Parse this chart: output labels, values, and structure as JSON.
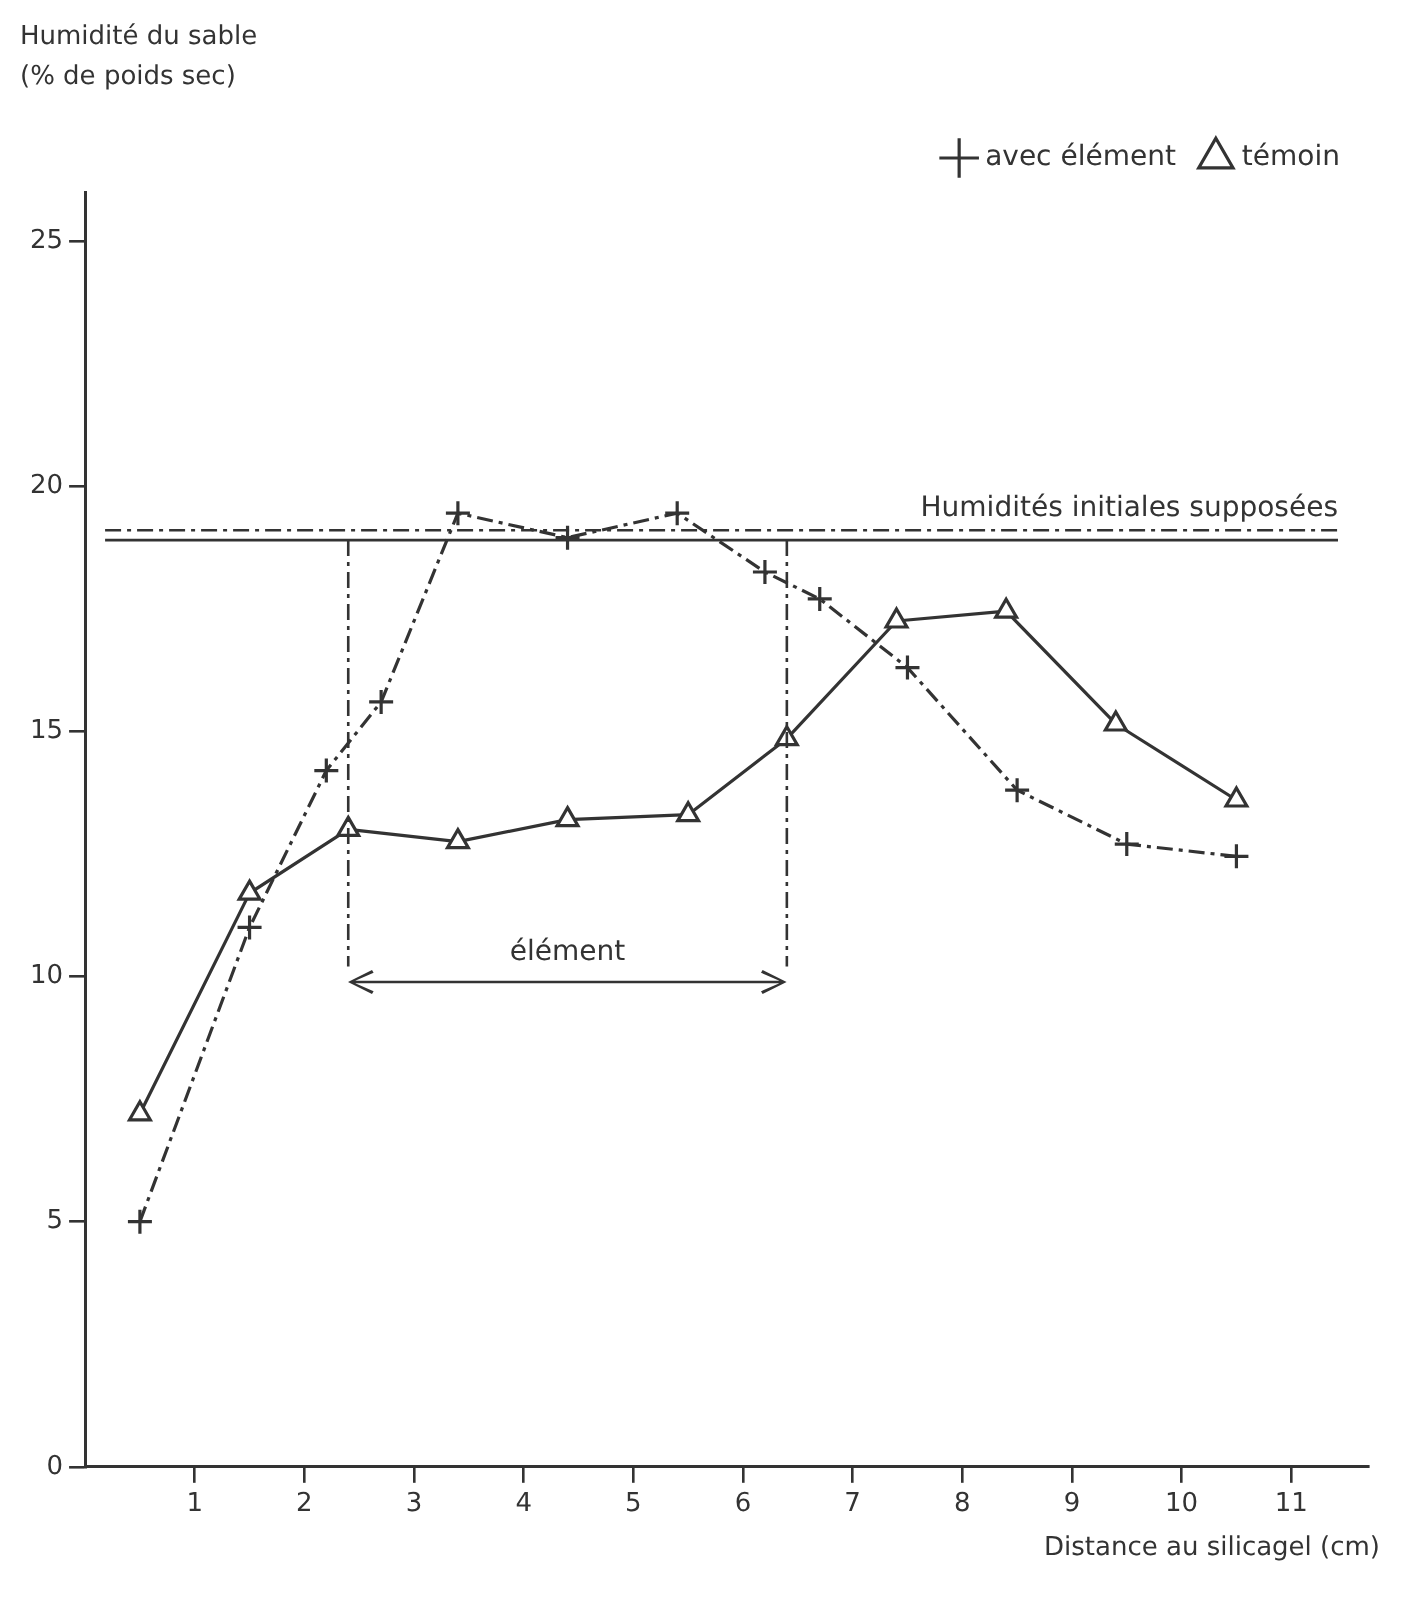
{
  "chart_data": {
    "type": "line",
    "ylabel": "Humidité du sable\n(% de poids sec)",
    "xlabel": "Distance au silicagel (cm)",
    "series": [
      {
        "name": "avec élément",
        "color": "#333333",
        "marker": "cross",
        "line_style": "dashed",
        "x": [
          0.5,
          1.5,
          2.2,
          2.7,
          3.4,
          4.4,
          5.4,
          6.2,
          6.7,
          7.5,
          8.5,
          9.5,
          10.5
        ],
        "values": [
          5.0,
          11.0,
          14.2,
          15.6,
          19.45,
          18.95,
          19.45,
          18.25,
          17.7,
          16.3,
          13.8,
          12.7,
          12.45
        ]
      },
      {
        "name": "témoin",
        "color": "#333333",
        "marker": "triangle",
        "line_style": "solid",
        "x": [
          0.5,
          1.5,
          2.4,
          3.4,
          4.4,
          5.5,
          6.4,
          7.4,
          8.4,
          9.4,
          10.5
        ],
        "values": [
          7.2,
          11.7,
          13.0,
          12.75,
          13.2,
          13.3,
          14.85,
          17.25,
          17.45,
          15.15,
          13.6
        ]
      }
    ],
    "ref_lines": [
      {
        "axis": "y",
        "value": 19.1,
        "label": "Humidités initiales supposées",
        "line_style": "dashed",
        "color": "#333333"
      },
      {
        "axis": "y",
        "value": 18.9,
        "line_style": "solid",
        "color": "#333333"
      },
      {
        "axis": "x",
        "value": 2.4,
        "line_style": "dashed",
        "color": "#333333"
      },
      {
        "axis": "x",
        "value": 6.4,
        "line_style": "dashed",
        "color": "#333333"
      }
    ],
    "annotations": [
      "élément"
    ],
    "xlim": [
      0,
      11.7
    ],
    "xticks": [
      1,
      2,
      3,
      4,
      5,
      6,
      7,
      8,
      9,
      10,
      11
    ],
    "ylim": [
      0,
      26
    ],
    "yticks": [
      0,
      5,
      10,
      15,
      20,
      25
    ],
    "grid": false,
    "legend": "top right"
  }
}
